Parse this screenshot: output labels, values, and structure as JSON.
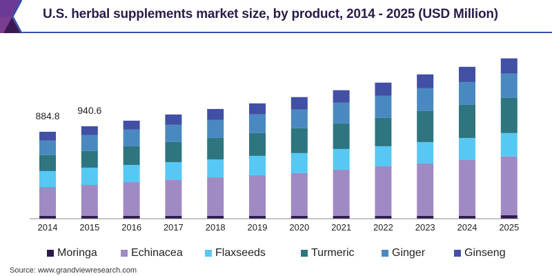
{
  "header": {
    "title": "U.S. herbal supplements market size, by product, 2014 - 2025 (USD Million)"
  },
  "source": "Source: www.grandviewresearch.com",
  "chart_data": {
    "type": "bar",
    "stacked": true,
    "title": "U.S. herbal supplements market size, by product, 2014 - 2025 (USD Million)",
    "xlabel": "",
    "ylabel": "",
    "ylim": [
      0,
      1650
    ],
    "grid": false,
    "legend_position": "bottom",
    "categories": [
      "2014",
      "2015",
      "2016",
      "2017",
      "2018",
      "2019",
      "2020",
      "2021",
      "2022",
      "2023",
      "2024",
      "2025"
    ],
    "series": [
      {
        "name": "Moringa",
        "color": "#2c1a4f",
        "values": [
          28,
          28,
          28,
          28,
          28,
          28,
          28,
          28,
          28,
          28,
          28,
          35
        ]
      },
      {
        "name": "Echinacea",
        "color": "#a08ac4",
        "values": [
          295,
          316,
          344,
          365,
          393,
          415,
          436,
          471,
          506,
          534,
          569,
          598
        ]
      },
      {
        "name": "Flaxseeds",
        "color": "#56c8f3",
        "values": [
          162,
          176,
          176,
          183,
          183,
          197,
          204,
          211,
          204,
          218,
          225,
          239
        ]
      },
      {
        "name": "Turmeric",
        "color": "#2e7580",
        "values": [
          162,
          169,
          190,
          204,
          218,
          232,
          253,
          260,
          288,
          316,
          337,
          359
        ]
      },
      {
        "name": "Ginger",
        "color": "#4a89bf",
        "values": [
          148,
          162,
          169,
          176,
          183,
          190,
          190,
          211,
          225,
          232,
          232,
          246
        ]
      },
      {
        "name": "Ginseng",
        "color": "#4150a4",
        "values": [
          90,
          90,
          91,
          105,
          112,
          112,
          127,
          127,
          134,
          141,
          155,
          155
        ]
      }
    ],
    "annotations": [
      {
        "category": "2014",
        "text": "884.8"
      },
      {
        "category": "2015",
        "text": "940.6"
      }
    ]
  }
}
